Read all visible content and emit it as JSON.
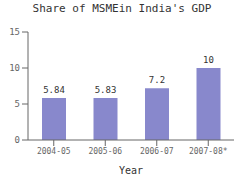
{
  "chart_data": {
    "type": "bar",
    "title": "Share of MSMEin India's GDP",
    "xlabel": "Year",
    "categories": [
      "2004-05",
      "2005-06",
      "2006-07",
      "2007-08*"
    ],
    "values": [
      5.84,
      5.83,
      7.2,
      10
    ],
    "color": "#8888cc",
    "ylim": [
      0,
      15
    ],
    "yticks": [
      0,
      5,
      10,
      15
    ],
    "grid": false,
    "data_labels": true
  }
}
